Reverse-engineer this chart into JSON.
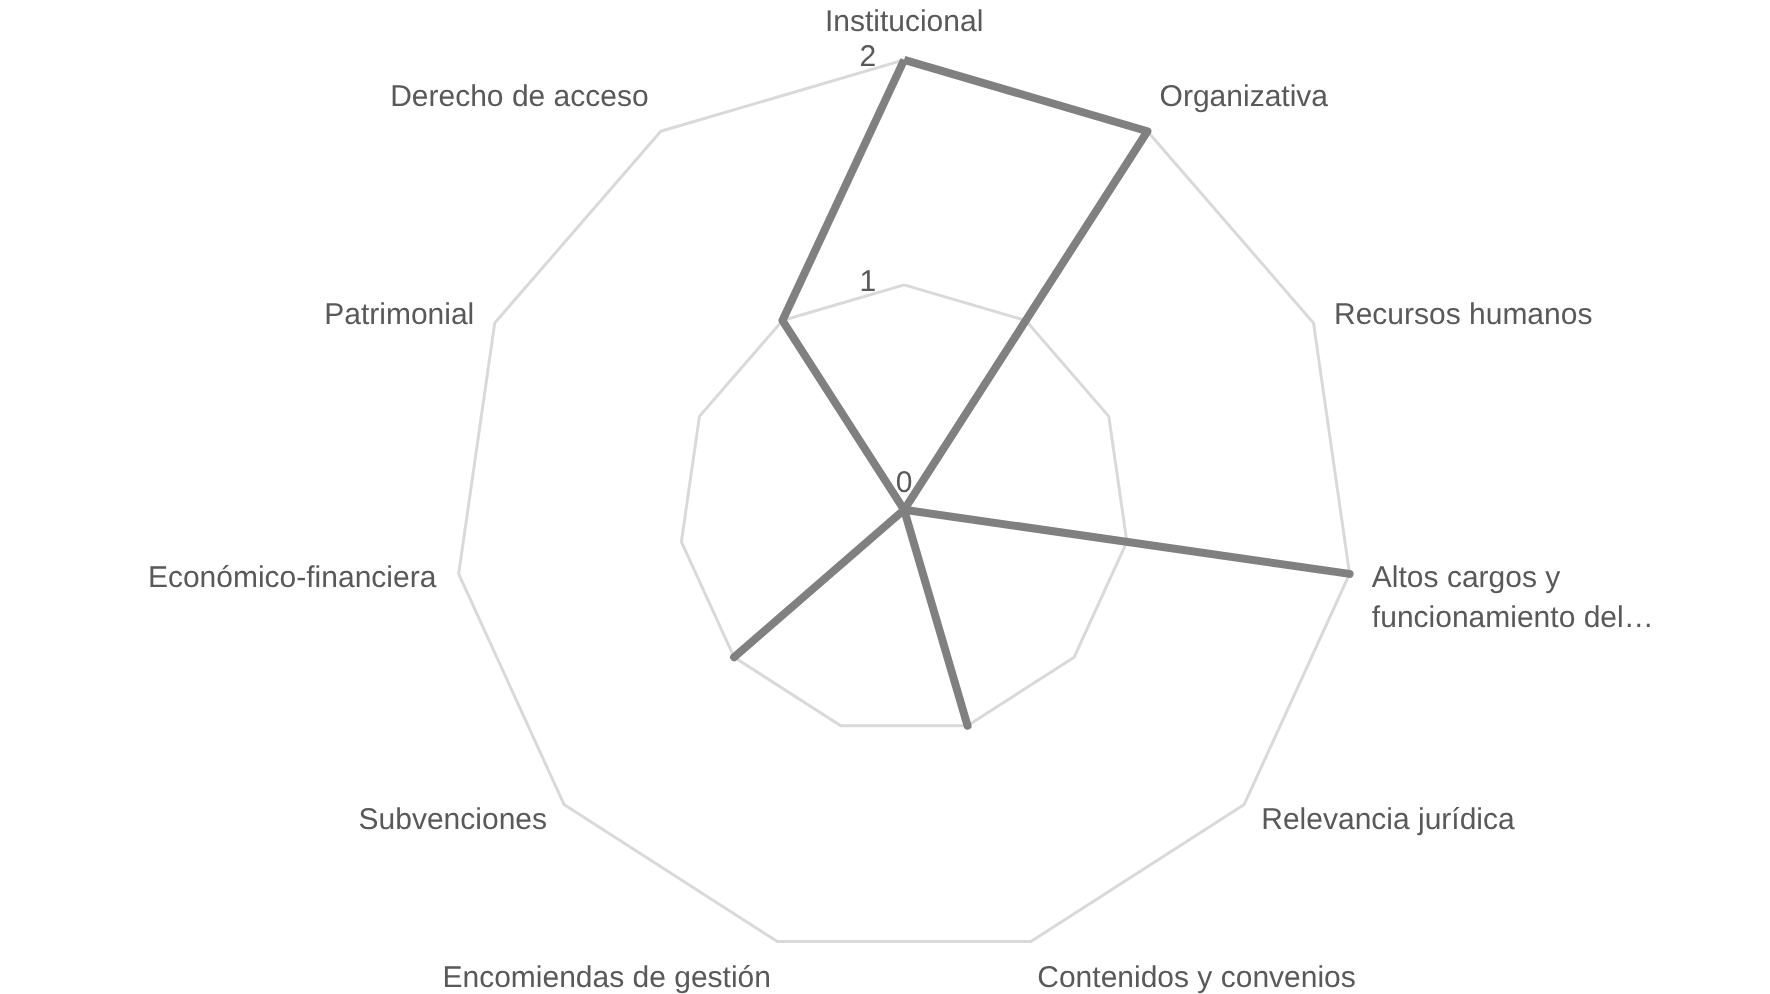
{
  "chart_data": {
    "type": "radar",
    "categories": [
      "Institucional",
      "Organizativa",
      "Recursos humanos",
      "Altos cargos y\nfuncionamiento del…",
      "Relevancia jurídica",
      "Contenidos y convenios",
      "Encomiendas de gestión",
      "Subvenciones",
      "Económico-financiera",
      "Patrimonial",
      "Derecho de acceso"
    ],
    "series": [
      {
        "color": "#808080",
        "values": [
          2,
          2,
          0,
          2,
          0,
          1,
          0,
          1,
          0,
          0,
          1
        ]
      }
    ],
    "ylim": [
      0,
      2
    ],
    "yticks": [
      0,
      1,
      2
    ],
    "grid": true
  }
}
